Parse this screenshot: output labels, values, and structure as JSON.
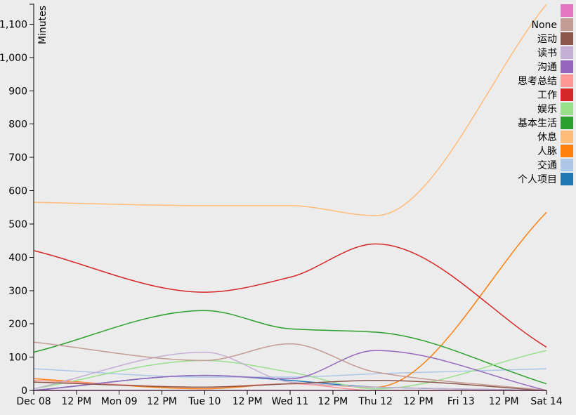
{
  "chart_data": {
    "type": "line",
    "ylabel": "Minutes",
    "ylim": [
      0,
      1160
    ],
    "y_ticks": [
      {
        "value": 0,
        "label": "0"
      },
      {
        "value": 100,
        "label": "100"
      },
      {
        "value": 200,
        "label": "200"
      },
      {
        "value": 300,
        "label": "300"
      },
      {
        "value": 400,
        "label": "400"
      },
      {
        "value": 500,
        "label": "500"
      },
      {
        "value": 600,
        "label": "600"
      },
      {
        "value": 700,
        "label": "700"
      },
      {
        "value": 800,
        "label": "800"
      },
      {
        "value": 900,
        "label": "900"
      },
      {
        "value": 1000,
        "label": "1,000"
      },
      {
        "value": 1100,
        "label": "1,100"
      }
    ],
    "x": [
      "Dec 08",
      "Tue 10",
      "Wed 11",
      "Thu 12",
      "Sat 14"
    ],
    "x_ticks": [
      {
        "value": "Dec 08 00:00",
        "label": "Dec 08"
      },
      {
        "value": "Dec 08 12:00",
        "label": "12 PM"
      },
      {
        "value": "Dec 09 00:00",
        "label": "Mon 09"
      },
      {
        "value": "Dec 09 12:00",
        "label": "12 PM"
      },
      {
        "value": "Dec 10 00:00",
        "label": "Tue 10"
      },
      {
        "value": "Dec 10 12:00",
        "label": "12 PM"
      },
      {
        "value": "Dec 11 00:00",
        "label": "Wed 11"
      },
      {
        "value": "Dec 11 12:00",
        "label": "12 PM"
      },
      {
        "value": "Dec 12 00:00",
        "label": "Thu 12"
      },
      {
        "value": "Dec 12 12:00",
        "label": "12 PM"
      },
      {
        "value": "Dec 13 00:00",
        "label": "Fri 13"
      },
      {
        "value": "Dec 13 12:00",
        "label": "12 PM"
      },
      {
        "value": "Dec 14 00:00",
        "label": "Sat 14"
      }
    ],
    "grid": false,
    "legend_position": "top-right",
    "series": [
      {
        "name": "",
        "color": "#e377c2",
        "values": [
          0,
          0,
          0,
          0,
          0
        ]
      },
      {
        "name": "None",
        "color": "#c49c94",
        "values": [
          145,
          90,
          140,
          55,
          0
        ]
      },
      {
        "name": "运动",
        "color": "#8c564b",
        "values": [
          25,
          10,
          20,
          30,
          0
        ]
      },
      {
        "name": "读书",
        "color": "#c5b0d5",
        "values": [
          5,
          115,
          25,
          10,
          0
        ]
      },
      {
        "name": "沟通",
        "color": "#9467bd",
        "values": [
          0,
          45,
          35,
          120,
          0
        ]
      },
      {
        "name": "思考总结",
        "color": "#ff9896",
        "values": [
          30,
          10,
          20,
          0,
          0
        ]
      },
      {
        "name": "工作",
        "color": "#d62728",
        "values": [
          420,
          295,
          340,
          440,
          130
        ]
      },
      {
        "name": "娱乐",
        "color": "#98df8a",
        "values": [
          5,
          90,
          55,
          5,
          120
        ]
      },
      {
        "name": "基本生活",
        "color": "#2ca02c",
        "values": [
          115,
          240,
          185,
          175,
          20
        ]
      },
      {
        "name": "休息",
        "color": "#ffbb78",
        "values": [
          565,
          555,
          555,
          525,
          1160
        ]
      },
      {
        "name": "人脉",
        "color": "#ff7f0e",
        "values": [
          35,
          5,
          20,
          10,
          535
        ]
      },
      {
        "name": "交通",
        "color": "#aec7e8",
        "values": [
          65,
          40,
          40,
          50,
          65
        ]
      },
      {
        "name": "个人项目",
        "color": "#1f77b4",
        "values": [
          0,
          45,
          30,
          10,
          0
        ]
      }
    ]
  }
}
